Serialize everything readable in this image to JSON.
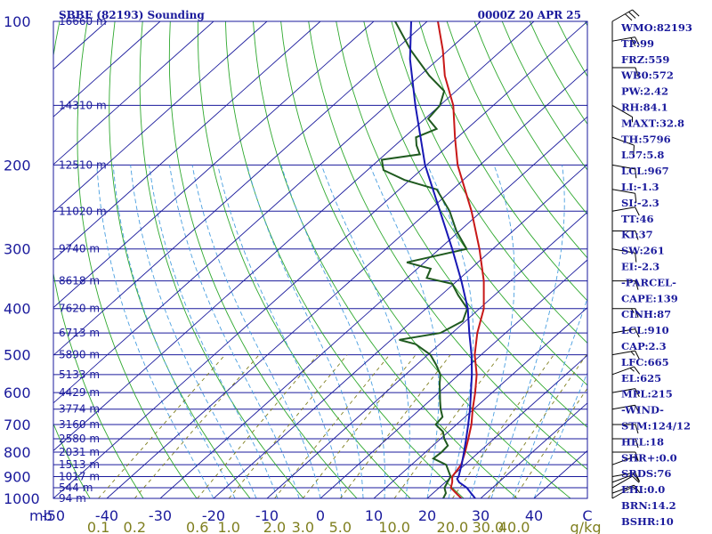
{
  "header": {
    "station": "SBBE (82193) Sounding",
    "time": "0000Z 20 APR 25"
  },
  "chart_data": {
    "type": "line",
    "title": "SBBE (82193) Sounding",
    "subtitle": "0000Z 20 APR 25",
    "y_scale": "log-pressure",
    "ylim": [
      1000,
      100
    ],
    "xlim": [
      -50,
      50
    ],
    "pressure_ticks": [
      100,
      200,
      300,
      400,
      500,
      600,
      700,
      800,
      900,
      1000
    ],
    "temperature_ticks": [
      -50,
      -40,
      -30,
      -20,
      -10,
      0,
      10,
      20,
      30,
      40
    ],
    "unit_left": "mb",
    "unit_right_temp": "C",
    "unit_mixing": "g/kg",
    "mixing_ratio_labels": [
      {
        "text": "0.1",
        "w": 0.1
      },
      {
        "text": "0.2",
        "w": 0.2
      },
      {
        "text": "0.6",
        "w": 0.6
      },
      {
        "text": "1.0",
        "w": 1.0
      },
      {
        "text": "2.0",
        "w": 2.0
      },
      {
        "text": "3.0",
        "w": 3.0
      },
      {
        "text": "5.0",
        "w": 5.0
      },
      {
        "text": "10.0",
        "w": 10.0
      },
      {
        "text": "20.0",
        "w": 20.0
      },
      {
        "text": "30.0",
        "w": 30.0
      },
      {
        "text": "40.0",
        "w": 40.0
      }
    ],
    "height_labels": [
      {
        "p": 100,
        "text": "16660 m"
      },
      {
        "p": 150,
        "text": "14310 m"
      },
      {
        "p": 200,
        "text": "12510 m"
      },
      {
        "p": 250,
        "text": "11020 m"
      },
      {
        "p": 300,
        "text": "9740 m"
      },
      {
        "p": 350,
        "text": "8618 m"
      },
      {
        "p": 400,
        "text": "7620 m"
      },
      {
        "p": 450,
        "text": "6713 m"
      },
      {
        "p": 500,
        "text": "5890 m"
      },
      {
        "p": 550,
        "text": "5133 m"
      },
      {
        "p": 600,
        "text": "4429 m"
      },
      {
        "p": 650,
        "text": "3774 m"
      },
      {
        "p": 700,
        "text": "3160 m"
      },
      {
        "p": 750,
        "text": "2580 m"
      },
      {
        "p": 800,
        "text": "2031 m"
      },
      {
        "p": 850,
        "text": "1513 m"
      },
      {
        "p": 900,
        "text": "1017 m"
      },
      {
        "p": 950,
        "text": "544 m"
      },
      {
        "p": 1000,
        "text": "94 m"
      }
    ],
    "series": [
      {
        "name": "Temperature",
        "color": "#c81818",
        "points": [
          [
            1000,
            26.4
          ],
          [
            975,
            24.3
          ],
          [
            950,
            22.2
          ],
          [
            925,
            21.3
          ],
          [
            900,
            20.1
          ],
          [
            850,
            19.3
          ],
          [
            800,
            17.4
          ],
          [
            750,
            15.2
          ],
          [
            700,
            12.8
          ],
          [
            650,
            9.8
          ],
          [
            600,
            6.8
          ],
          [
            550,
            3.3
          ],
          [
            500,
            -1.2
          ],
          [
            450,
            -5.3
          ],
          [
            400,
            -9.2
          ],
          [
            350,
            -15.0
          ],
          [
            300,
            -22.5
          ],
          [
            250,
            -31.9
          ],
          [
            200,
            -44.2
          ],
          [
            175,
            -50.5
          ],
          [
            150,
            -57.5
          ],
          [
            130,
            -65.3
          ],
          [
            115,
            -71.0
          ],
          [
            100,
            -78.0
          ]
        ]
      },
      {
        "name": "Dewpoint",
        "color": "#1f5a1f",
        "points": [
          [
            1000,
            23.0
          ],
          [
            975,
            22.4
          ],
          [
            950,
            21.0
          ],
          [
            925,
            20.4
          ],
          [
            900,
            19.8
          ],
          [
            850,
            16.5
          ],
          [
            825,
            12.8
          ],
          [
            800,
            13.0
          ],
          [
            775,
            12.8
          ],
          [
            750,
            10.7
          ],
          [
            725,
            9.0
          ],
          [
            700,
            6.1
          ],
          [
            675,
            5.8
          ],
          [
            650,
            3.8
          ],
          [
            625,
            2.0
          ],
          [
            600,
            0.2
          ],
          [
            575,
            -1.7
          ],
          [
            550,
            -3.5
          ],
          [
            525,
            -6.3
          ],
          [
            500,
            -9.5
          ],
          [
            475,
            -14.5
          ],
          [
            465,
            -18.5
          ],
          [
            450,
            -12.2
          ],
          [
            425,
            -10.5
          ],
          [
            400,
            -12.3
          ],
          [
            375,
            -16.8
          ],
          [
            355,
            -20.3
          ],
          [
            345,
            -26.3
          ],
          [
            330,
            -27.5
          ],
          [
            320,
            -33.3
          ],
          [
            300,
            -24.9
          ],
          [
            275,
            -30.6
          ],
          [
            250,
            -36.0
          ],
          [
            225,
            -43.0
          ],
          [
            215,
            -51.0
          ],
          [
            205,
            -57.0
          ],
          [
            195,
            -59.5
          ],
          [
            190,
            -53.5
          ],
          [
            182,
            -56.0
          ],
          [
            175,
            -57.8
          ],
          [
            168,
            -55.7
          ],
          [
            160,
            -59.4
          ],
          [
            150,
            -60.0
          ],
          [
            140,
            -62.2
          ],
          [
            130,
            -68.2
          ],
          [
            115,
            -77.0
          ],
          [
            100,
            -86.0
          ]
        ]
      },
      {
        "name": "Parcel",
        "color": "#1818b4",
        "points": [
          [
            1000,
            29.0
          ],
          [
            975,
            27.1
          ],
          [
            950,
            25.2
          ],
          [
            925,
            22.6
          ],
          [
            910,
            21.5
          ],
          [
            900,
            21.3
          ],
          [
            850,
            19.4
          ],
          [
            800,
            17.2
          ],
          [
            750,
            14.8
          ],
          [
            700,
            12.2
          ],
          [
            650,
            9.3
          ],
          [
            600,
            6.0
          ],
          [
            550,
            2.4
          ],
          [
            500,
            -1.8
          ],
          [
            450,
            -6.8
          ],
          [
            400,
            -12.2
          ],
          [
            350,
            -19.2
          ],
          [
            300,
            -27.6
          ],
          [
            250,
            -37.8
          ],
          [
            200,
            -50.3
          ],
          [
            150,
            -64.6
          ],
          [
            120,
            -75.3
          ],
          [
            100,
            -83.0
          ]
        ]
      }
    ],
    "wind_barbs": [
      {
        "p": 100,
        "dir": 60,
        "spd": 30
      },
      {
        "p": 110,
        "dir": 80,
        "spd": 20
      },
      {
        "p": 125,
        "dir": 90,
        "spd": 10
      },
      {
        "p": 150,
        "dir": 120,
        "spd": 5
      },
      {
        "p": 175,
        "dir": 110,
        "spd": 10
      },
      {
        "p": 200,
        "dir": 100,
        "spd": 10
      },
      {
        "p": 225,
        "dir": 100,
        "spd": 10
      },
      {
        "p": 250,
        "dir": 80,
        "spd": 10
      },
      {
        "p": 275,
        "dir": 90,
        "spd": 10
      },
      {
        "p": 300,
        "dir": 100,
        "spd": 10
      },
      {
        "p": 350,
        "dir": 90,
        "spd": 10
      },
      {
        "p": 400,
        "dir": 90,
        "spd": 15
      },
      {
        "p": 450,
        "dir": 80,
        "spd": 10
      },
      {
        "p": 500,
        "dir": 80,
        "spd": 15
      },
      {
        "p": 550,
        "dir": 70,
        "spd": 15
      },
      {
        "p": 600,
        "dir": 80,
        "spd": 10
      },
      {
        "p": 650,
        "dir": 80,
        "spd": 10
      },
      {
        "p": 700,
        "dir": 90,
        "spd": 10
      },
      {
        "p": 750,
        "dir": 90,
        "spd": 10
      },
      {
        "p": 800,
        "dir": 90,
        "spd": 10
      },
      {
        "p": 850,
        "dir": 70,
        "spd": 5
      },
      {
        "p": 900,
        "dir": 80,
        "spd": 10
      },
      {
        "p": 925,
        "dir": 70,
        "spd": 10
      },
      {
        "p": 950,
        "dir": 60,
        "spd": 10
      },
      {
        "p": 975,
        "dir": 70,
        "spd": 10
      },
      {
        "p": 1000,
        "dir": 60,
        "spd": 5
      }
    ]
  },
  "indices": [
    "WMO:82193",
    "TP:99",
    "FRZ:559",
    "WB0:572",
    "PW:2.42",
    "RH:84.1",
    "MAXT:32.8",
    "TH:5796",
    "L57:5.8",
    "LCL:967",
    "LI:-1.3",
    "SI:-2.3",
    "TT:46",
    "KI:37",
    "SW:261",
    "EI:-2.3",
    "-PARCEL-",
    "CAPE:139",
    "CINH:87",
    "LCL:910",
    "CAP:2.3",
    "LFC:665",
    "EL:625",
    "MPL:215",
    "-WIND-",
    "STM:124/12",
    "HEL:18",
    "SHR+:0.0",
    "SRDS:76",
    "EHI:0.0",
    "BRN:14.2",
    "BSHR:10"
  ],
  "colors": {
    "frame": "#1a1a9c",
    "isobar": "#1a1a9c",
    "isotherm": "#1a1a9c",
    "dry_adiabat": "#2ea82e",
    "moist_adiabat": "#4a9fe0",
    "mixing_ratio": "#7f7f1f"
  }
}
